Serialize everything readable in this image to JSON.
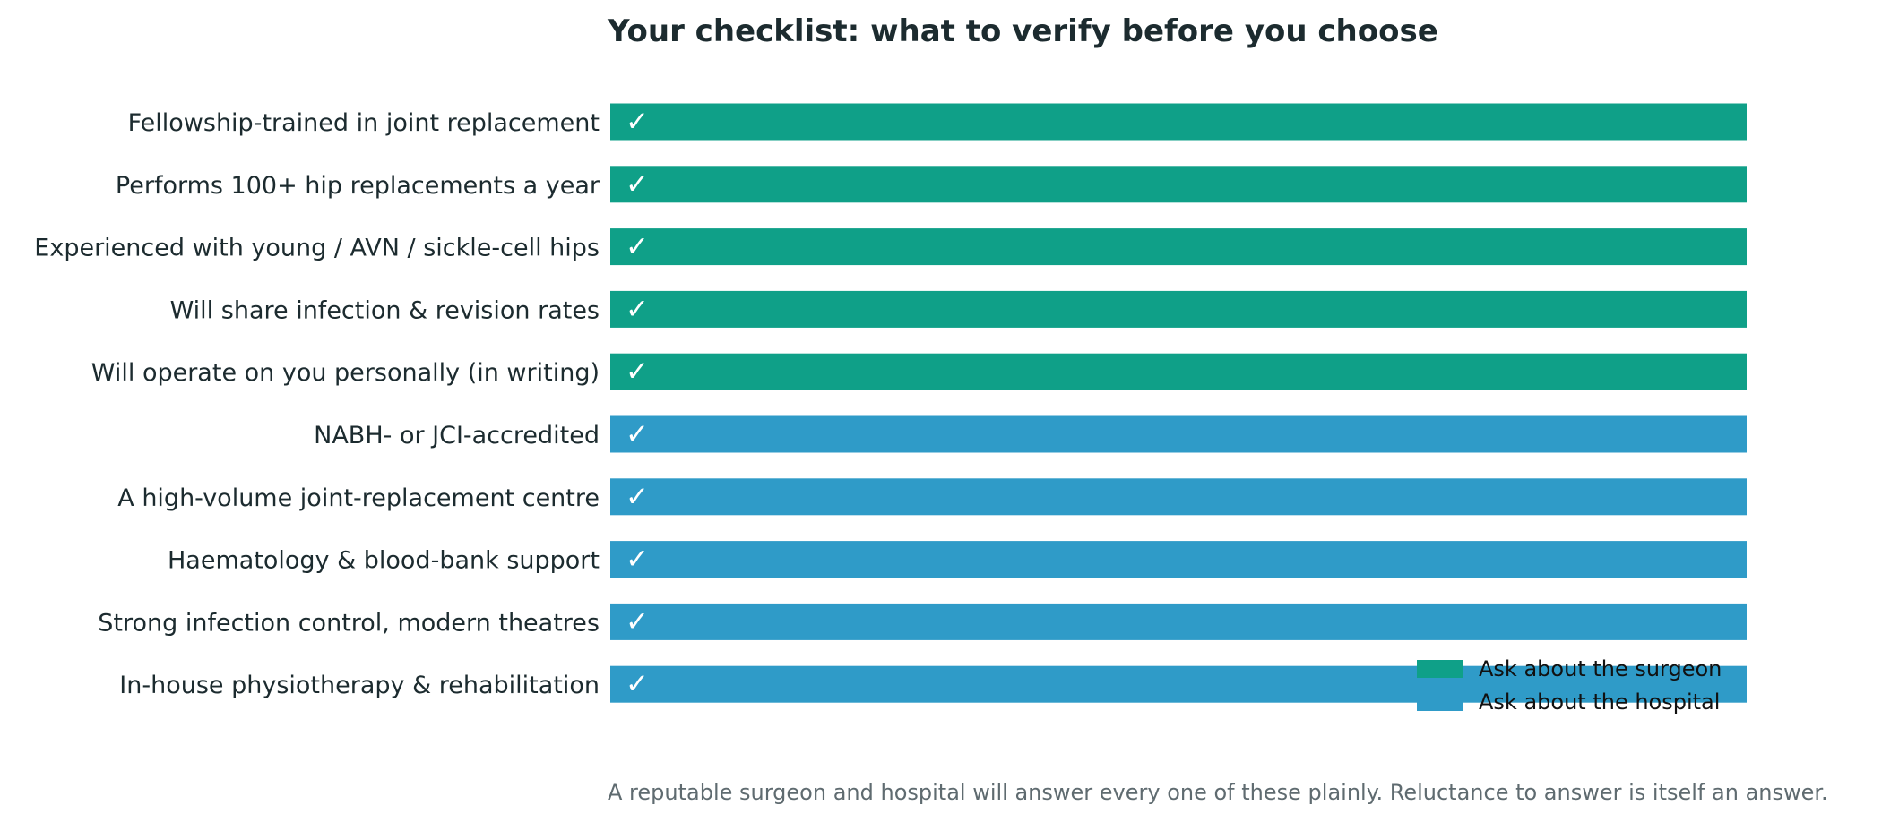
{
  "chart_data": {
    "type": "bar",
    "orientation": "horizontal",
    "title": "Your checklist: what to verify before you choose",
    "footnote": "A reputable surgeon and hospital will answer every one of these plainly. Reluctance to answer is itself an answer.",
    "categories": [
      "Fellowship-trained in joint replacement",
      "Performs 100+ hip replacements a year",
      "Experienced with young / AVN / sickle-cell hips",
      "Will share infection & revision rates",
      "Will operate on you personally (in writing)",
      "NABH- or JCI-accredited",
      "A high-volume joint-replacement centre",
      "Haematology & blood-bank support",
      "Strong infection control, modern theatres",
      "In-house physiotherapy & rehabilitation"
    ],
    "values": [
      1,
      1,
      1,
      1,
      1,
      1,
      1,
      1,
      1,
      1
    ],
    "groups": [
      "surgeon",
      "surgeon",
      "surgeon",
      "surgeon",
      "surgeon",
      "hospital",
      "hospital",
      "hospital",
      "hospital",
      "hospital"
    ],
    "bar_label": "✓",
    "series": [
      {
        "key": "surgeon",
        "name": "Ask about the surgeon",
        "color": "#0fa088"
      },
      {
        "key": "hospital",
        "name": "Ask about the hospital",
        "color": "#2f9bc8"
      }
    ],
    "xlim": [
      0,
      1
    ],
    "grid": false,
    "legend_position": "lower-right"
  }
}
